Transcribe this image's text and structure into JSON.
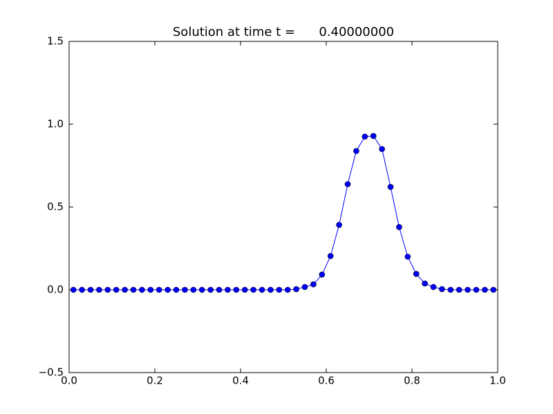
{
  "chart_data": {
    "type": "line",
    "title": "Solution at time t =      0.40000000",
    "x": [
      0.01,
      0.03,
      0.05,
      0.07,
      0.09,
      0.11,
      0.13,
      0.15,
      0.17,
      0.19,
      0.21,
      0.23,
      0.25,
      0.27,
      0.29,
      0.31,
      0.33,
      0.35,
      0.37,
      0.39,
      0.41,
      0.43,
      0.45,
      0.47,
      0.49,
      0.51,
      0.53,
      0.55,
      0.57,
      0.59,
      0.61,
      0.63,
      0.65,
      0.67,
      0.69,
      0.71,
      0.73,
      0.75,
      0.77,
      0.79,
      0.81,
      0.83,
      0.85,
      0.87,
      0.89,
      0.91,
      0.93,
      0.95,
      0.97,
      0.99
    ],
    "series": [
      {
        "color": "#0000ff",
        "marker": "circle",
        "values": [
          0,
          0,
          0,
          0,
          0,
          0,
          0,
          0,
          0,
          0,
          0,
          0,
          0,
          0,
          0,
          0,
          0,
          0,
          0,
          0,
          0,
          0,
          0,
          0,
          0,
          0,
          0.004,
          0.017,
          0.033,
          0.092,
          0.204,
          0.392,
          0.638,
          0.838,
          0.925,
          0.929,
          0.85,
          0.621,
          0.379,
          0.2,
          0.096,
          0.038,
          0.017,
          0.004,
          0,
          0,
          0,
          0,
          0,
          0
        ]
      }
    ],
    "xlim": [
      0,
      1
    ],
    "xticks": [
      {
        "value": 0,
        "label": "0.0"
      },
      0.2,
      0.4,
      0.6,
      0.8,
      {
        "value": 1,
        "label": "1.0"
      }
    ],
    "ylim": [
      -0.5,
      1.5
    ],
    "yticks": [
      {
        "value": -0.5,
        "label": "−0.5"
      },
      {
        "value": 0,
        "label": "0.0"
      },
      0.5,
      {
        "value": 1,
        "label": "1.0"
      },
      1.5
    ],
    "grid": false
  }
}
